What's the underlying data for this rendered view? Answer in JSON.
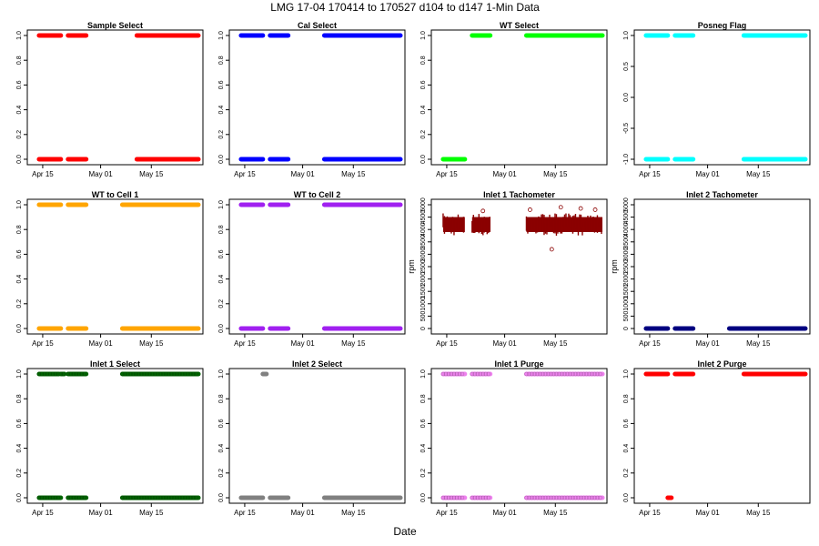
{
  "figure": {
    "title": "LMG   17-04    170414 to 170527    d104 to d147   1-Min Data",
    "xlabel": "Date"
  },
  "x_ticks": [
    "Apr 15",
    "May 01",
    "May 15"
  ],
  "x_tick_days": [
    15,
    31,
    45
  ],
  "x_range_days": [
    12,
    58
  ],
  "chart_data": [
    {
      "type": "scatter",
      "title": "Sample Select",
      "color": "#ff0000",
      "ylabel": "",
      "ylim": [
        0,
        1
      ],
      "yticks": [
        0,
        0.2,
        0.4,
        0.6,
        0.8,
        1
      ],
      "ytick_labels": [
        "0.0",
        "0.2",
        "0.4",
        "0.6",
        "0.8",
        "1.0"
      ],
      "series": [
        {
          "value": 1,
          "segments": [
            [
              14,
              20
            ],
            [
              22,
              27
            ],
            [
              41,
              58
            ]
          ]
        },
        {
          "value": 0,
          "segments": [
            [
              14,
              20
            ],
            [
              22,
              27
            ],
            [
              41,
              58
            ]
          ]
        }
      ]
    },
    {
      "type": "scatter",
      "title": "Cal Select",
      "color": "#0000ff",
      "ylabel": "",
      "ylim": [
        0,
        1
      ],
      "yticks": [
        0,
        0.2,
        0.4,
        0.6,
        0.8,
        1
      ],
      "ytick_labels": [
        "0.0",
        "0.2",
        "0.4",
        "0.6",
        "0.8",
        "1.0"
      ],
      "series": [
        {
          "value": 1,
          "segments": [
            [
              14,
              20
            ],
            [
              22,
              27
            ],
            [
              37,
              58
            ]
          ]
        },
        {
          "value": 0,
          "segments": [
            [
              14,
              20
            ],
            [
              22,
              27
            ],
            [
              37,
              58
            ]
          ]
        }
      ]
    },
    {
      "type": "scatter",
      "title": "WT Select",
      "color": "#00ff00",
      "ylabel": "",
      "ylim": [
        0,
        1
      ],
      "yticks": [
        0,
        0.2,
        0.4,
        0.6,
        0.8,
        1
      ],
      "ytick_labels": [
        "0.0",
        "0.2",
        "0.4",
        "0.6",
        "0.8",
        "1.0"
      ],
      "series": [
        {
          "value": 0,
          "segments": [
            [
              14,
              20
            ]
          ]
        },
        {
          "value": 1,
          "segments": [
            [
              22,
              27
            ],
            [
              37,
              58
            ]
          ]
        }
      ]
    },
    {
      "type": "scatter",
      "title": "Posneg Flag",
      "color": "#00ffff",
      "ylabel": "",
      "ylim": [
        -1,
        1
      ],
      "yticks": [
        -1,
        -0.5,
        0,
        0.5,
        1
      ],
      "ytick_labels": [
        "-1.0",
        "-0.5",
        "0.0",
        "0.5",
        "1.0"
      ],
      "series": [
        {
          "value": 1,
          "segments": [
            [
              14,
              20
            ],
            [
              22,
              27
            ],
            [
              41,
              58
            ]
          ]
        },
        {
          "value": -1,
          "segments": [
            [
              14,
              20
            ],
            [
              22,
              27
            ],
            [
              41,
              58
            ]
          ]
        }
      ]
    },
    {
      "type": "scatter",
      "title": "WT to Cell 1",
      "color": "#ffa500",
      "ylabel": "",
      "ylim": [
        0,
        1
      ],
      "yticks": [
        0,
        0.2,
        0.4,
        0.6,
        0.8,
        1
      ],
      "ytick_labels": [
        "0.0",
        "0.2",
        "0.4",
        "0.6",
        "0.8",
        "1.0"
      ],
      "series": [
        {
          "value": 1,
          "segments": [
            [
              14,
              20
            ],
            [
              22,
              27
            ],
            [
              37,
              58
            ]
          ]
        },
        {
          "value": 0,
          "segments": [
            [
              14,
              20
            ],
            [
              22,
              27
            ],
            [
              37,
              58
            ]
          ]
        }
      ]
    },
    {
      "type": "scatter",
      "title": "WT to Cell 2",
      "color": "#a020f0",
      "ylabel": "",
      "ylim": [
        0,
        1
      ],
      "yticks": [
        0,
        0.2,
        0.4,
        0.6,
        0.8,
        1
      ],
      "ytick_labels": [
        "0.0",
        "0.2",
        "0.4",
        "0.6",
        "0.8",
        "1.0"
      ],
      "series": [
        {
          "value": 1,
          "segments": [
            [
              14,
              20
            ],
            [
              22,
              27
            ],
            [
              37,
              58
            ]
          ]
        },
        {
          "value": 0,
          "segments": [
            [
              14,
              20
            ],
            [
              22,
              27
            ],
            [
              37,
              58
            ]
          ]
        }
      ]
    },
    {
      "type": "scatter",
      "title": "Inlet 1 Tachometer",
      "color": "#8b0000",
      "ylabel": "rpm",
      "ylim": [
        0,
        5000
      ],
      "yticks": [
        0,
        500,
        1000,
        1500,
        2000,
        2500,
        3000,
        3500,
        4000,
        4500,
        5000
      ],
      "ytick_labels": [
        "0",
        "500",
        "1000",
        "1500",
        "2000",
        "2500",
        "3000",
        "3500",
        "4000",
        "4500",
        "5000"
      ],
      "band": {
        "low": 3750,
        "high": 4650,
        "segments": [
          [
            14,
            20
          ],
          [
            22,
            27
          ],
          [
            37,
            58
          ]
        ]
      },
      "outliers": [
        [
          44,
          3200
        ],
        [
          46.5,
          4900
        ],
        [
          52,
          4850
        ],
        [
          56,
          4800
        ],
        [
          38,
          4800
        ],
        [
          25,
          4750
        ]
      ]
    },
    {
      "type": "scatter",
      "title": "Inlet 2 Tachometer",
      "color": "#000080",
      "ylabel": "rpm",
      "ylim": [
        0,
        5000
      ],
      "yticks": [
        0,
        500,
        1000,
        1500,
        2000,
        2500,
        3000,
        3500,
        4000,
        4500,
        5000
      ],
      "ytick_labels": [
        "0",
        "500",
        "1000",
        "1500",
        "2000",
        "2500",
        "3000",
        "3500",
        "4000",
        "4500",
        "5000"
      ],
      "series": [
        {
          "value": 0,
          "segments": [
            [
              14,
              20
            ],
            [
              22,
              27
            ],
            [
              37,
              58
            ]
          ]
        }
      ]
    },
    {
      "type": "scatter",
      "title": "Inlet 1 Select",
      "color": "#006400",
      "ylabel": "",
      "ylim": [
        0,
        1
      ],
      "yticks": [
        0,
        0.2,
        0.4,
        0.6,
        0.8,
        1
      ],
      "ytick_labels": [
        "0.0",
        "0.2",
        "0.4",
        "0.6",
        "0.8",
        "1.0"
      ],
      "series": [
        {
          "value": 1,
          "segments": [
            [
              14,
              19.5
            ],
            [
              20,
              21
            ],
            [
              22,
              27
            ],
            [
              37,
              58
            ]
          ]
        },
        {
          "value": 0,
          "segments": [
            [
              14,
              20
            ],
            [
              22,
              27
            ],
            [
              37,
              58
            ]
          ]
        }
      ],
      "open": true
    },
    {
      "type": "scatter",
      "title": "Inlet 2 Select",
      "color": "#808080",
      "ylabel": "",
      "ylim": [
        0,
        1
      ],
      "yticks": [
        0,
        0.2,
        0.4,
        0.6,
        0.8,
        1
      ],
      "ytick_labels": [
        "0.0",
        "0.2",
        "0.4",
        "0.6",
        "0.8",
        "1.0"
      ],
      "series": [
        {
          "value": 1,
          "segments": [
            [
              20,
              21
            ]
          ]
        },
        {
          "value": 0,
          "segments": [
            [
              14,
              20
            ],
            [
              22,
              27
            ],
            [
              37,
              58
            ]
          ]
        }
      ]
    },
    {
      "type": "scatter",
      "title": "Inlet 1 Purge",
      "color": "#ee82ee",
      "ylabel": "",
      "ylim": [
        0,
        1
      ],
      "yticks": [
        0,
        0.2,
        0.4,
        0.6,
        0.8,
        1
      ],
      "ytick_labels": [
        "0.0",
        "0.2",
        "0.4",
        "0.6",
        "0.8",
        "1.0"
      ],
      "series": [
        {
          "value": 1,
          "segments": [
            [
              14,
              20
            ],
            [
              22,
              27
            ],
            [
              37,
              58
            ]
          ]
        },
        {
          "value": 0,
          "segments": [
            [
              14,
              20
            ],
            [
              22,
              27
            ],
            [
              37,
              58
            ]
          ]
        }
      ],
      "open": true
    },
    {
      "type": "scatter",
      "title": "Inlet 2 Purge",
      "color": "#ff0000",
      "ylabel": "",
      "ylim": [
        0,
        1
      ],
      "yticks": [
        0,
        0.2,
        0.4,
        0.6,
        0.8,
        1
      ],
      "ytick_labels": [
        "0.0",
        "0.2",
        "0.4",
        "0.6",
        "0.8",
        "1.0"
      ],
      "series": [
        {
          "value": 1,
          "segments": [
            [
              14,
              20
            ],
            [
              22,
              27
            ],
            [
              41,
              58
            ]
          ]
        },
        {
          "value": 0,
          "segments": [
            [
              20,
              21
            ]
          ]
        }
      ]
    }
  ]
}
